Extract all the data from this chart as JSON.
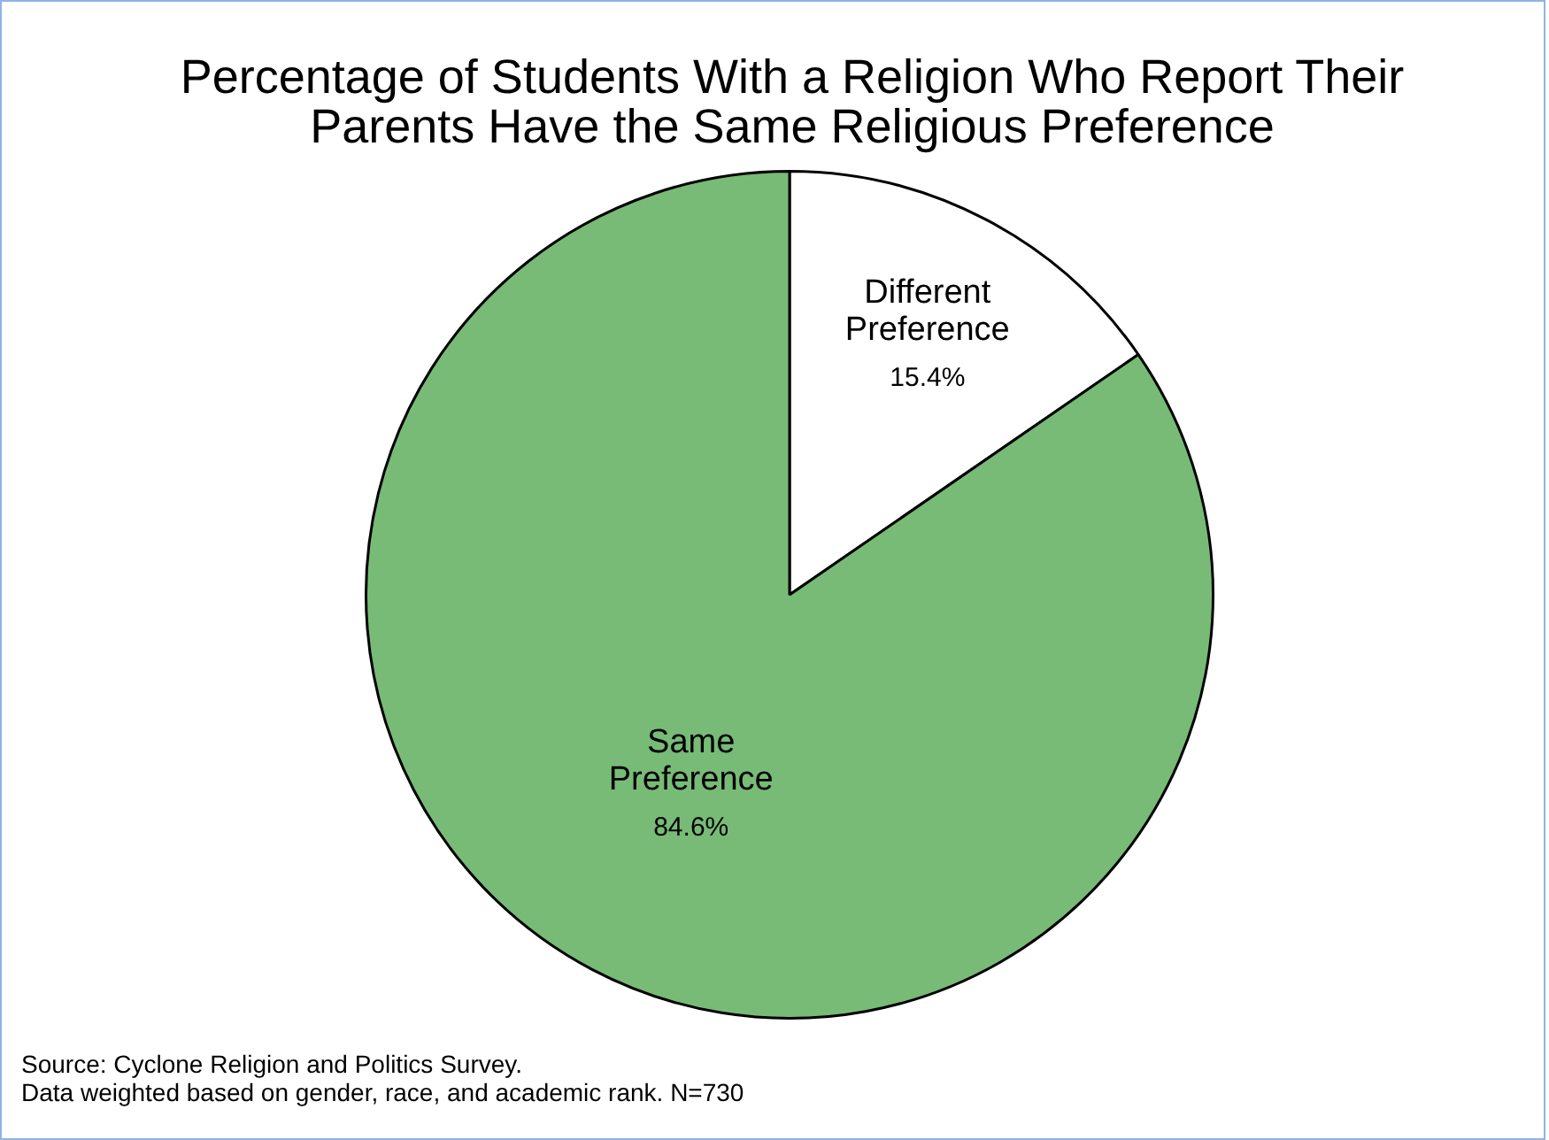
{
  "chart_data": {
    "type": "pie",
    "title": "Percentage of Students With a Religion Who Report Their Parents Have the Same Religious Preference",
    "categories": [
      "Different Preference",
      "Same Preference"
    ],
    "values": [
      15.4,
      84.6
    ],
    "colors": [
      "#ffffff",
      "#77bb77"
    ],
    "value_labels": [
      "15.4%",
      "84.6%"
    ],
    "legend": false,
    "annotations": [
      "Source: Cyclone Religion and Politics Survey.",
      "Data weighted based on gender, race, and academic rank. N=730"
    ]
  }
}
